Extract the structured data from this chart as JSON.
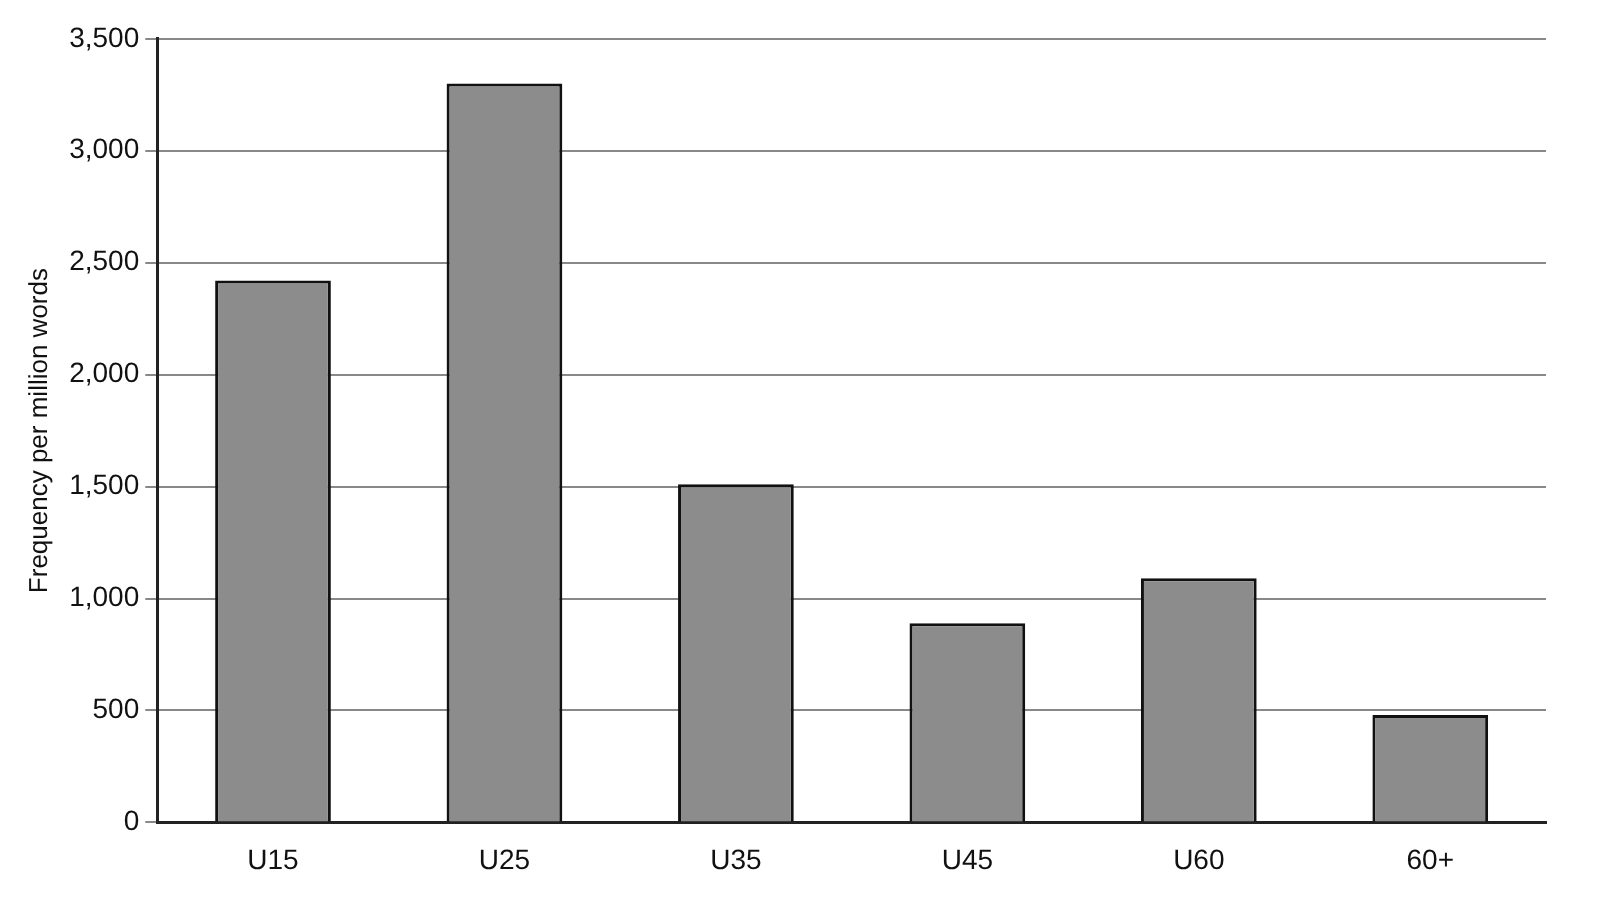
{
  "chart_data": {
    "type": "bar",
    "ylabel": "Frequency per million words",
    "categories": [
      "U15",
      "U25",
      "U35",
      "U45",
      "U60",
      "60+"
    ],
    "values": [
      2420,
      3300,
      1510,
      890,
      1090,
      480
    ],
    "color": "#8c8c8c",
    "ylim": [
      0,
      3500
    ],
    "yticks": [
      {
        "value": 0,
        "label": "0"
      },
      {
        "value": 500,
        "label": "500"
      },
      {
        "value": 1000,
        "label": "1,000"
      },
      {
        "value": 1500,
        "label": "1,500"
      },
      {
        "value": 2000,
        "label": "2,000"
      },
      {
        "value": 2500,
        "label": "2,500"
      },
      {
        "value": 3000,
        "label": "3,000"
      },
      {
        "value": 3500,
        "label": "3,500"
      }
    ],
    "grid": "y",
    "legend": false
  }
}
